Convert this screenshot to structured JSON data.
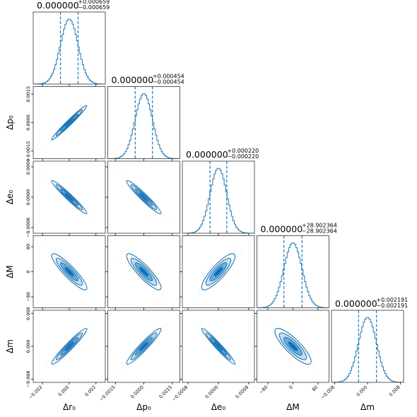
{
  "chart_data": {
    "type": "corner",
    "parameters": [
      {
        "name": "r0",
        "label": "Δr₀",
        "lim": [
          -0.0027,
          0.0027
        ],
        "ticks": [
          -0.002,
          0.0,
          0.002
        ],
        "tick_labels": [
          "−0.002",
          "0.000",
          "0.002"
        ],
        "sigma": 0.000659
      },
      {
        "name": "p0",
        "label": "Δp₀",
        "lim": [
          -0.0019,
          0.0019
        ],
        "ticks": [
          -0.0015,
          0.0,
          0.0015
        ],
        "tick_labels": [
          "−0.0015",
          "0.0000",
          "0.0015"
        ],
        "sigma": 0.000454
      },
      {
        "name": "e0",
        "label": "Δe₀",
        "lim": [
          -0.00095,
          0.00095
        ],
        "ticks": [
          -0.0008,
          0.0,
          0.0008
        ],
        "tick_labels": [
          "−0.0008",
          "0.0000",
          "0.0008"
        ],
        "sigma": 0.00022
      },
      {
        "name": "M",
        "label": "ΔM",
        "lim": [
          -115,
          115
        ],
        "ticks": [
          -80,
          0,
          80
        ],
        "tick_labels": [
          "−80",
          "0",
          "80"
        ],
        "sigma": 28.902364
      },
      {
        "name": "m",
        "label": "Δm",
        "lim": [
          -0.0088,
          0.0088
        ],
        "ticks": [
          -0.008,
          0.0,
          0.008
        ],
        "tick_labels": [
          "−0.008",
          "0.000",
          "0.008"
        ],
        "sigma": 0.002191
      }
    ],
    "titles": [
      {
        "value": "0.000000",
        "plus": "+0.000659",
        "minus": "−0.000659"
      },
      {
        "value": "0.000000",
        "plus": "+0.000454",
        "minus": "−0.000454"
      },
      {
        "value": "0.000000",
        "plus": "+0.000220",
        "minus": "−0.000220"
      },
      {
        "value": "0.000000",
        "plus": "+28.902364",
        "minus": "−28.902364"
      },
      {
        "value": "0.000000",
        "plus": "+0.002191",
        "minus": "−0.002191"
      }
    ],
    "correlations": [
      [
        1.0,
        0.98,
        -0.97,
        -0.9,
        0.96
      ],
      [
        0.98,
        1.0,
        -0.96,
        -0.88,
        0.95
      ],
      [
        -0.97,
        -0.96,
        1.0,
        0.85,
        -0.97
      ],
      [
        -0.9,
        -0.88,
        0.85,
        1.0,
        -0.84
      ],
      [
        0.96,
        0.95,
        -0.97,
        -0.84,
        1.0
      ]
    ],
    "quantile_lines_sigma": [
      -1,
      1
    ],
    "contour_levels_sigma": [
      0.5,
      1.0,
      1.5,
      2.0
    ],
    "colors": {
      "main": "#1f77b4",
      "fill_outer": "#c6dbef",
      "fill_mid": "#6baed6",
      "fill_inner": "#0570c8",
      "points": "#9ecae1"
    },
    "grid": false
  }
}
